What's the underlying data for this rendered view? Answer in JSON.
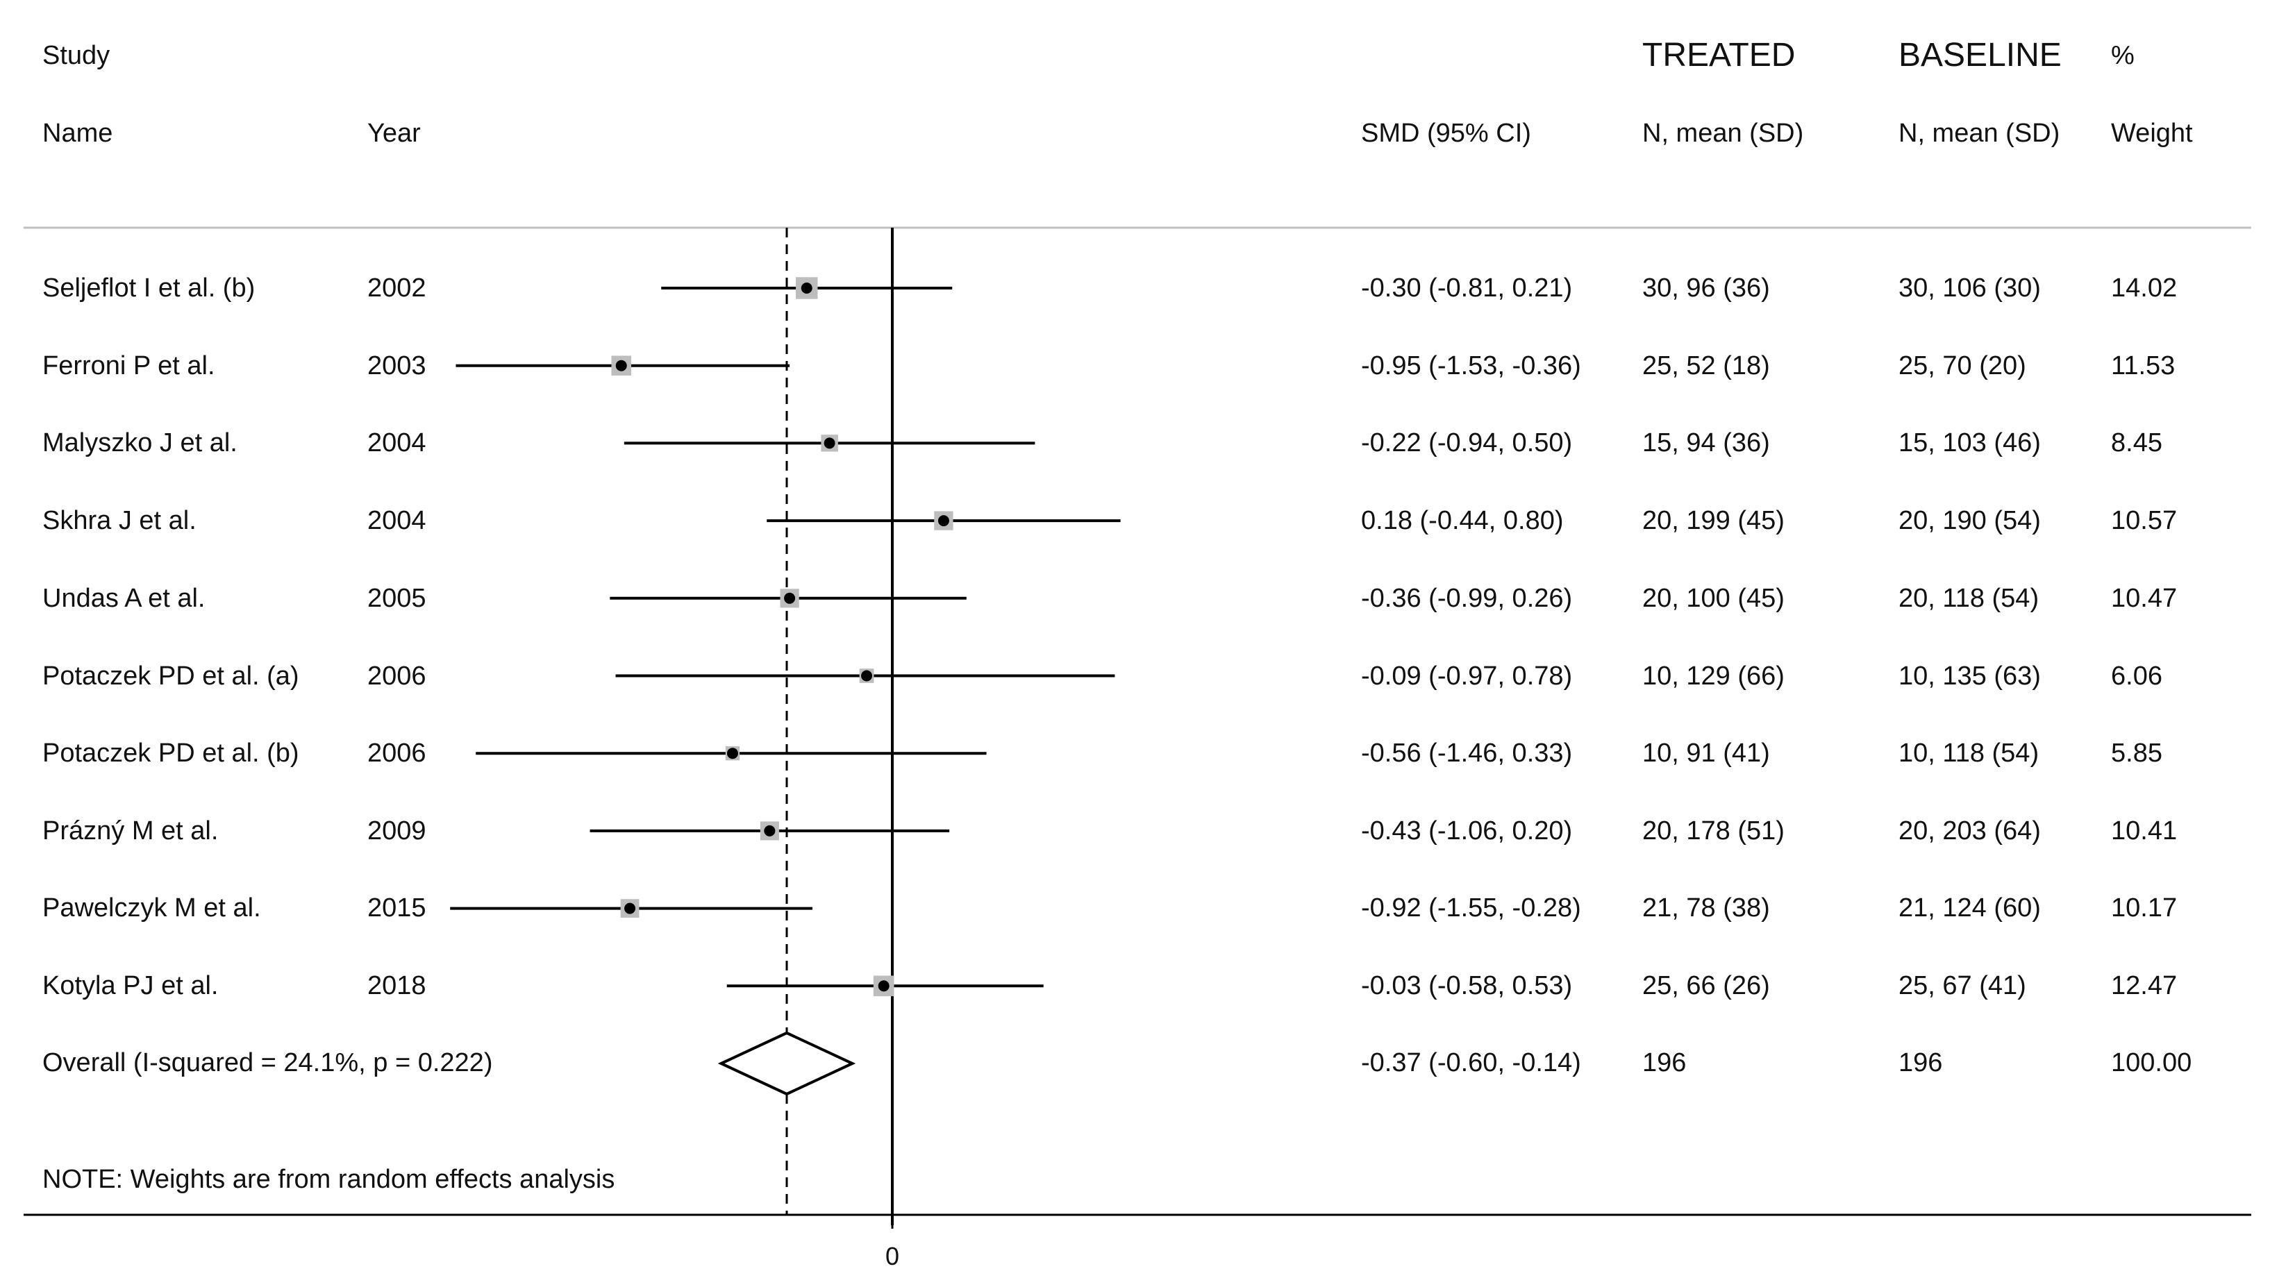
{
  "headers": {
    "study": "Study",
    "name": "Name",
    "year": "Year",
    "smd": "SMD (95% CI)",
    "treated": "TREATED",
    "treated_sub": "N, mean (SD)",
    "baseline": "BASELINE",
    "baseline_sub": "N, mean (SD)",
    "pct": "%",
    "weight": "Weight"
  },
  "studies": [
    {
      "name": "Seljeflot I et al. (b)",
      "year": "2002",
      "ci_text": "-0.30 (-0.81, 0.21)",
      "treated": "30, 96 (36)",
      "baseline": "30, 106 (30)",
      "weight": "14.02"
    },
    {
      "name": "Ferroni P et al.",
      "year": "2003",
      "ci_text": "-0.95 (-1.53, -0.36)",
      "treated": "25, 52 (18)",
      "baseline": "25, 70 (20)",
      "weight": "11.53"
    },
    {
      "name": "Malyszko J et al.",
      "year": "2004",
      "ci_text": "-0.22 (-0.94, 0.50)",
      "treated": "15, 94 (36)",
      "baseline": "15, 103 (46)",
      "weight": "8.45"
    },
    {
      "name": "Skhra J et al.",
      "year": "2004",
      "ci_text": "0.18 (-0.44, 0.80)",
      "treated": "20, 199 (45)",
      "baseline": "20, 190 (54)",
      "weight": "10.57"
    },
    {
      "name": "Undas A et al.",
      "year": "2005",
      "ci_text": "-0.36 (-0.99, 0.26)",
      "treated": "20, 100 (45)",
      "baseline": "20, 118 (54)",
      "weight": "10.47"
    },
    {
      "name": "Potaczek PD et al. (a)",
      "year": "2006",
      "ci_text": "-0.09 (-0.97, 0.78)",
      "treated": "10, 129 (66)",
      "baseline": "10, 135 (63)",
      "weight": "6.06"
    },
    {
      "name": "Potaczek PD et al. (b)",
      "year": "2006",
      "ci_text": "-0.56 (-1.46, 0.33)",
      "treated": "10, 91 (41)",
      "baseline": "10, 118 (54)",
      "weight": "5.85"
    },
    {
      "name": "Prázný M et al.",
      "year": "2009",
      "ci_text": "-0.43 (-1.06, 0.20)",
      "treated": "20, 178 (51)",
      "baseline": "20, 203 (64)",
      "weight": "10.41"
    },
    {
      "name": "Pawelczyk M et al.",
      "year": "2015",
      "ci_text": "-0.92 (-1.55, -0.28)",
      "treated": "21, 78 (38)",
      "baseline": "21, 124 (60)",
      "weight": "10.17"
    },
    {
      "name": "Kotyla PJ et al.",
      "year": "2018",
      "ci_text": "-0.03 (-0.58, 0.53)",
      "treated": "25, 66 (26)",
      "baseline": "25, 67 (41)",
      "weight": "12.47"
    }
  ],
  "overall": {
    "label": "Overall  (I-squared = 24.1%, p = 0.222)",
    "ci_text": "-0.37 (-0.60, -0.14)",
    "treated": "196",
    "baseline": "196",
    "weight": "100.00"
  },
  "note": "NOTE: Weights are from random effects analysis",
  "chart_data": {
    "type": "forest",
    "title": "",
    "xlabel": "",
    "x_ticks": [
      0
    ],
    "x_tick_labels": [
      "0"
    ],
    "null_line": 0,
    "xlim": [
      -1.6,
      0.85
    ],
    "series": [
      {
        "name": "Seljeflot I et al. (b)",
        "est": -0.3,
        "lo": -0.81,
        "hi": 0.21,
        "weight": 14.02
      },
      {
        "name": "Ferroni P et al.",
        "est": -0.95,
        "lo": -1.53,
        "hi": -0.36,
        "weight": 11.53
      },
      {
        "name": "Malyszko J et al.",
        "est": -0.22,
        "lo": -0.94,
        "hi": 0.5,
        "weight": 8.45
      },
      {
        "name": "Skhra J et al.",
        "est": 0.18,
        "lo": -0.44,
        "hi": 0.8,
        "weight": 10.57
      },
      {
        "name": "Undas A et al.",
        "est": -0.36,
        "lo": -0.99,
        "hi": 0.26,
        "weight": 10.47
      },
      {
        "name": "Potaczek PD et al. (a)",
        "est": -0.09,
        "lo": -0.97,
        "hi": 0.78,
        "weight": 6.06
      },
      {
        "name": "Potaczek PD et al. (b)",
        "est": -0.56,
        "lo": -1.46,
        "hi": 0.33,
        "weight": 5.85
      },
      {
        "name": "Prázný M et al.",
        "est": -0.43,
        "lo": -1.06,
        "hi": 0.2,
        "weight": 10.41
      },
      {
        "name": "Pawelczyk M et al.",
        "est": -0.92,
        "lo": -1.55,
        "hi": -0.28,
        "weight": 10.17
      },
      {
        "name": "Kotyla PJ et al.",
        "est": -0.03,
        "lo": -0.58,
        "hi": 0.53,
        "weight": 12.47
      }
    ],
    "overall": {
      "est": -0.37,
      "lo": -0.6,
      "hi": -0.14,
      "weight": 100.0
    },
    "colors": {
      "line": "#000000",
      "box": "#bdbdbd",
      "dot": "#000000",
      "rule": "#bfbfbf"
    }
  }
}
